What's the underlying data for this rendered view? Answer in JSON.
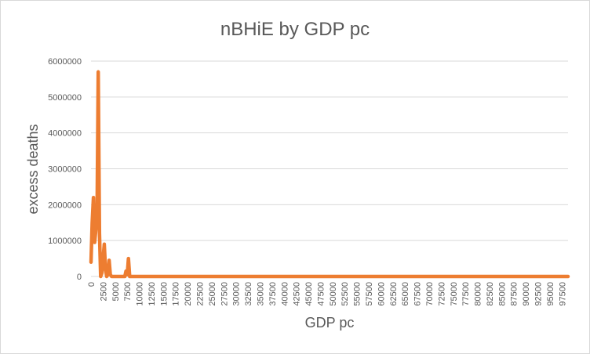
{
  "chart_data": {
    "type": "line",
    "title": "nBHiE by GDP pc",
    "xlabel": "GDP pc",
    "ylabel": "excess deaths",
    "ylim": [
      0,
      6000000
    ],
    "yticks": [
      0,
      1000000,
      2000000,
      3000000,
      4000000,
      5000000,
      6000000
    ],
    "xlim": [
      0,
      98750
    ],
    "xticks": [
      "0",
      "2500",
      "5000",
      "7500",
      "10000",
      "12500",
      "15000",
      "17500",
      "20000",
      "22500",
      "25000",
      "27500",
      "30000",
      "32500",
      "35000",
      "37500",
      "40000",
      "42500",
      "45000",
      "47500",
      "50000",
      "52500",
      "55000",
      "57500",
      "60000",
      "62500",
      "65000",
      "67500",
      "70000",
      "72500",
      "75000",
      "77500",
      "80000",
      "82500",
      "85000",
      "87500",
      "90000",
      "92500",
      "95000",
      "97500"
    ],
    "grid": true,
    "legend": "none",
    "series_color": "#ED7D31",
    "series": [
      {
        "x": [
          0,
          250,
          500,
          750,
          1000,
          1250,
          1500,
          1750,
          2000,
          2250,
          2500,
          2750,
          3000,
          3250,
          3500,
          3750,
          4000,
          4250,
          4500,
          4750,
          5000,
          5250,
          5500,
          5750,
          6000,
          6250,
          6500,
          6750,
          7000,
          7250,
          7500,
          7750,
          8000,
          8250,
          8500,
          8750,
          9000,
          9250,
          9500,
          9750,
          10000,
          10250,
          10500,
          10750,
          11000,
          11250,
          11500,
          11750,
          12000,
          12250,
          12500,
          15000,
          20000,
          30000,
          40000,
          50000,
          60000,
          70000,
          80000,
          90000,
          98750
        ],
        "y": [
          400000,
          1500000,
          2200000,
          950000,
          1300000,
          1700000,
          5700000,
          1200000,
          0,
          100000,
          500000,
          900000,
          200000,
          0,
          50000,
          450000,
          50000,
          0,
          0,
          0,
          0,
          0,
          0,
          0,
          0,
          0,
          0,
          0,
          0,
          150000,
          50000,
          500000,
          0,
          0,
          0,
          0,
          0,
          0,
          0,
          0,
          0,
          0,
          0,
          0,
          0,
          0,
          0,
          0,
          0,
          0,
          0,
          0,
          0,
          0,
          0,
          0,
          0,
          0,
          0,
          0,
          0
        ]
      }
    ]
  }
}
